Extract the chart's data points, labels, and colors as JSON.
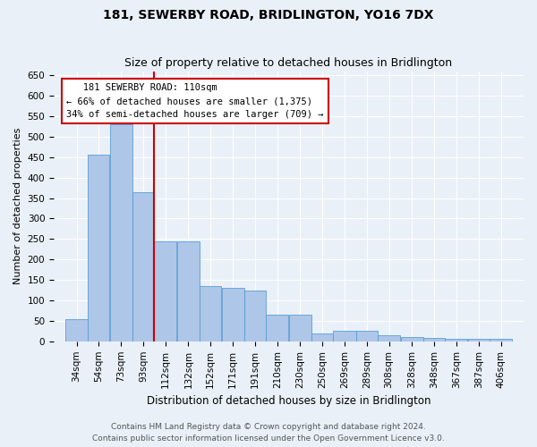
{
  "title": "181, SEWERBY ROAD, BRIDLINGTON, YO16 7DX",
  "subtitle": "Size of property relative to detached houses in Bridlington",
  "xlabel": "Distribution of detached houses by size in Bridlington",
  "ylabel": "Number of detached properties",
  "footer_line1": "Contains HM Land Registry data © Crown copyright and database right 2024.",
  "footer_line2": "Contains public sector information licensed under the Open Government Licence v3.0.",
  "annotation_line1": "   181 SEWERBY ROAD: 110sqm",
  "annotation_line2": "← 66% of detached houses are smaller (1,375)",
  "annotation_line3": "34% of semi-detached houses are larger (709) →",
  "bar_left_edges": [
    34,
    54,
    73,
    93,
    112,
    132,
    152,
    171,
    191,
    210,
    230,
    250,
    269,
    289,
    308,
    328,
    348,
    367,
    387,
    406
  ],
  "bar_widths": [
    20,
    19,
    20,
    19,
    20,
    20,
    19,
    20,
    19,
    20,
    20,
    19,
    20,
    19,
    20,
    20,
    19,
    20,
    19,
    20
  ],
  "bar_heights": [
    55,
    455,
    530,
    365,
    245,
    245,
    135,
    130,
    125,
    65,
    65,
    20,
    25,
    25,
    15,
    10,
    8,
    7,
    6,
    6
  ],
  "bar_color": "#aec6e8",
  "bar_edge_color": "#5a9fd4",
  "vline_color": "#cc0000",
  "vline_x": 112,
  "ylim": [
    0,
    660
  ],
  "yticks": [
    0,
    50,
    100,
    150,
    200,
    250,
    300,
    350,
    400,
    450,
    500,
    550,
    600,
    650
  ],
  "bg_color": "#eaf0f8",
  "plot_bg_color": "#eaf0f8",
  "grid_color": "#ffffff",
  "annotation_box_facecolor": "#ffffff",
  "annotation_box_edgecolor": "#cc0000",
  "title_fontsize": 10,
  "subtitle_fontsize": 9,
  "xlabel_fontsize": 8.5,
  "ylabel_fontsize": 8,
  "tick_fontsize": 7.5,
  "annotation_fontsize": 7.5,
  "footer_fontsize": 6.5,
  "xlim_left": 24,
  "xlim_right": 436
}
